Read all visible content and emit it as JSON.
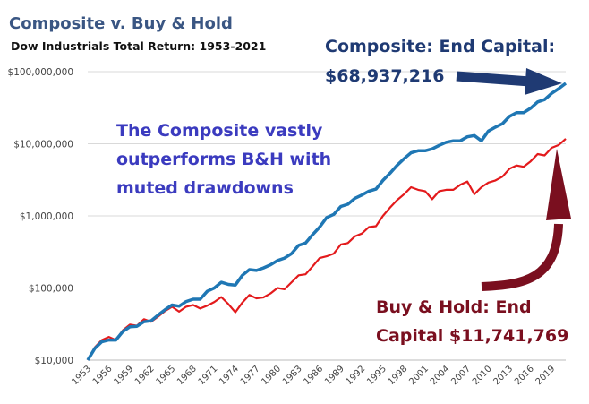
{
  "chart_data": {
    "type": "line",
    "title": "Composite v. Buy & Hold",
    "subtitle": "Dow Industrials Total Return: 1953-2021",
    "xlabel": "",
    "ylabel": "",
    "y_scale": "log",
    "ylim": [
      10000,
      100000000
    ],
    "xlim": [
      1953,
      2021
    ],
    "y_ticks": [
      10000,
      100000,
      1000000,
      10000000,
      100000000
    ],
    "y_tick_labels": [
      "$10,000",
      "$100,000",
      "$1,000,000",
      "$10,000,000",
      "$100,000,000"
    ],
    "x_ticks": [
      1953,
      1956,
      1959,
      1962,
      1965,
      1968,
      1971,
      1974,
      1977,
      1980,
      1983,
      1986,
      1989,
      1992,
      1995,
      1998,
      2001,
      2004,
      2007,
      2010,
      2013,
      2016,
      2019
    ],
    "grid": "horizontal",
    "series": [
      {
        "name": "Composite",
        "color": "#1f77b4",
        "x": [
          1953,
          1954,
          1955,
          1956,
          1957,
          1958,
          1959,
          1960,
          1961,
          1962,
          1963,
          1964,
          1965,
          1966,
          1967,
          1968,
          1969,
          1970,
          1971,
          1972,
          1973,
          1974,
          1975,
          1976,
          1977,
          1978,
          1979,
          1980,
          1981,
          1982,
          1983,
          1984,
          1985,
          1986,
          1987,
          1988,
          1989,
          1990,
          1991,
          1992,
          1993,
          1994,
          1995,
          1996,
          1997,
          1998,
          1999,
          2000,
          2001,
          2002,
          2003,
          2004,
          2005,
          2006,
          2007,
          2008,
          2009,
          2010,
          2011,
          2012,
          2013,
          2014,
          2015,
          2016,
          2017,
          2018,
          2019,
          2020,
          2021
        ],
        "values": [
          10000,
          14500,
          18000,
          19000,
          19000,
          25000,
          29000,
          29500,
          34000,
          35000,
          42000,
          50000,
          58000,
          56000,
          65000,
          70000,
          70000,
          90000,
          100000,
          120000,
          112000,
          110000,
          150000,
          180000,
          175000,
          190000,
          210000,
          240000,
          260000,
          300000,
          390000,
          420000,
          550000,
          700000,
          950000,
          1050000,
          1350000,
          1450000,
          1750000,
          1950000,
          2200000,
          2350000,
          3100000,
          3900000,
          5000000,
          6200000,
          7500000,
          8000000,
          8000000,
          8500000,
          9500000,
          10500000,
          11000000,
          11000000,
          12500000,
          13000000,
          11000000,
          15000000,
          17000000,
          19000000,
          24000000,
          27000000,
          27000000,
          31000000,
          38000000,
          41000000,
          50000000,
          58000000,
          68937216
        ]
      },
      {
        "name": "Buy & Hold",
        "color": "#e31a1c",
        "x": [
          1953,
          1954,
          1955,
          1956,
          1957,
          1958,
          1959,
          1960,
          1961,
          1962,
          1963,
          1964,
          1965,
          1966,
          1967,
          1968,
          1969,
          1970,
          1971,
          1972,
          1973,
          1974,
          1975,
          1976,
          1977,
          1978,
          1979,
          1980,
          1981,
          1982,
          1983,
          1984,
          1985,
          1986,
          1987,
          1988,
          1989,
          1990,
          1991,
          1992,
          1993,
          1994,
          1995,
          1996,
          1997,
          1998,
          1999,
          2000,
          2001,
          2002,
          2003,
          2004,
          2005,
          2006,
          2007,
          2008,
          2009,
          2010,
          2011,
          2012,
          2013,
          2014,
          2015,
          2016,
          2017,
          2018,
          2019,
          2020,
          2021
        ],
        "values": [
          10000,
          15000,
          19000,
          21000,
          19000,
          26000,
          31000,
          30000,
          37000,
          34000,
          40000,
          48000,
          55000,
          47000,
          55000,
          58000,
          52000,
          57000,
          64000,
          75000,
          60000,
          46000,
          63000,
          80000,
          72000,
          74000,
          84000,
          100000,
          96000,
          120000,
          150000,
          155000,
          200000,
          260000,
          275000,
          300000,
          400000,
          420000,
          520000,
          570000,
          700000,
          720000,
          1000000,
          1300000,
          1650000,
          2000000,
          2500000,
          2300000,
          2200000,
          1700000,
          2200000,
          2300000,
          2300000,
          2700000,
          3000000,
          2000000,
          2500000,
          2900000,
          3100000,
          3500000,
          4500000,
          5000000,
          4800000,
          5700000,
          7200000,
          6900000,
          8800000,
          9600000,
          11741769
        ]
      }
    ],
    "annotations": [
      {
        "id": "composite_end",
        "lines": [
          "Composite: End Capital:",
          "$68,937,216"
        ]
      },
      {
        "id": "middle_note",
        "lines": [
          "The Composite vastly",
          "outperforms B&H with",
          "muted drawdowns"
        ]
      },
      {
        "id": "bh_end",
        "lines": [
          "Buy & Hold: End",
          "Capital $11,741,769"
        ]
      }
    ]
  }
}
